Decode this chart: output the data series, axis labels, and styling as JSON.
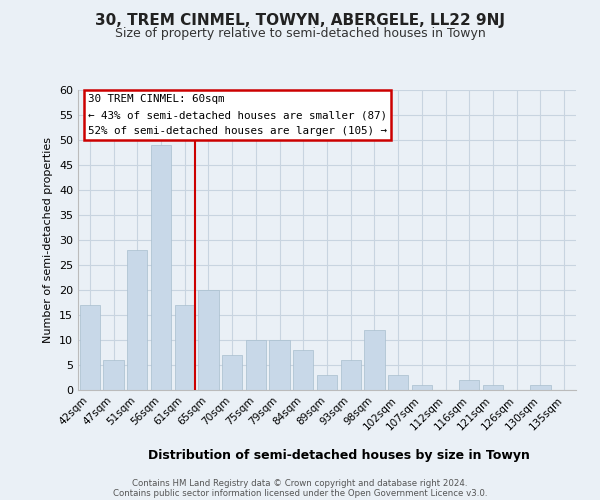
{
  "title": "30, TREM CINMEL, TOWYN, ABERGELE, LL22 9NJ",
  "subtitle": "Size of property relative to semi-detached houses in Towyn",
  "xlabel": "Distribution of semi-detached houses by size in Towyn",
  "ylabel": "Number of semi-detached properties",
  "footer_line1": "Contains HM Land Registry data © Crown copyright and database right 2024.",
  "footer_line2": "Contains public sector information licensed under the Open Government Licence v3.0.",
  "categories": [
    "42sqm",
    "47sqm",
    "51sqm",
    "56sqm",
    "61sqm",
    "65sqm",
    "70sqm",
    "75sqm",
    "79sqm",
    "84sqm",
    "89sqm",
    "93sqm",
    "98sqm",
    "102sqm",
    "107sqm",
    "112sqm",
    "116sqm",
    "121sqm",
    "126sqm",
    "130sqm",
    "135sqm"
  ],
  "values": [
    17,
    6,
    28,
    49,
    17,
    20,
    7,
    10,
    10,
    8,
    3,
    6,
    12,
    3,
    1,
    0,
    2,
    1,
    0,
    1,
    0
  ],
  "bar_color": "#c8d8e8",
  "bar_edge_color": "#a8bece",
  "highlight_index": 4,
  "highlight_line_color": "#cc0000",
  "ylim": [
    0,
    60
  ],
  "yticks": [
    0,
    5,
    10,
    15,
    20,
    25,
    30,
    35,
    40,
    45,
    50,
    55,
    60
  ],
  "annotation_title": "30 TREM CINMEL: 60sqm",
  "annotation_line1": "← 43% of semi-detached houses are smaller (87)",
  "annotation_line2": "52% of semi-detached houses are larger (105) →",
  "annotation_box_color": "#ffffff",
  "annotation_box_edge_color": "#cc0000",
  "grid_color": "#c8d4e0",
  "background_color": "#eaf0f6"
}
